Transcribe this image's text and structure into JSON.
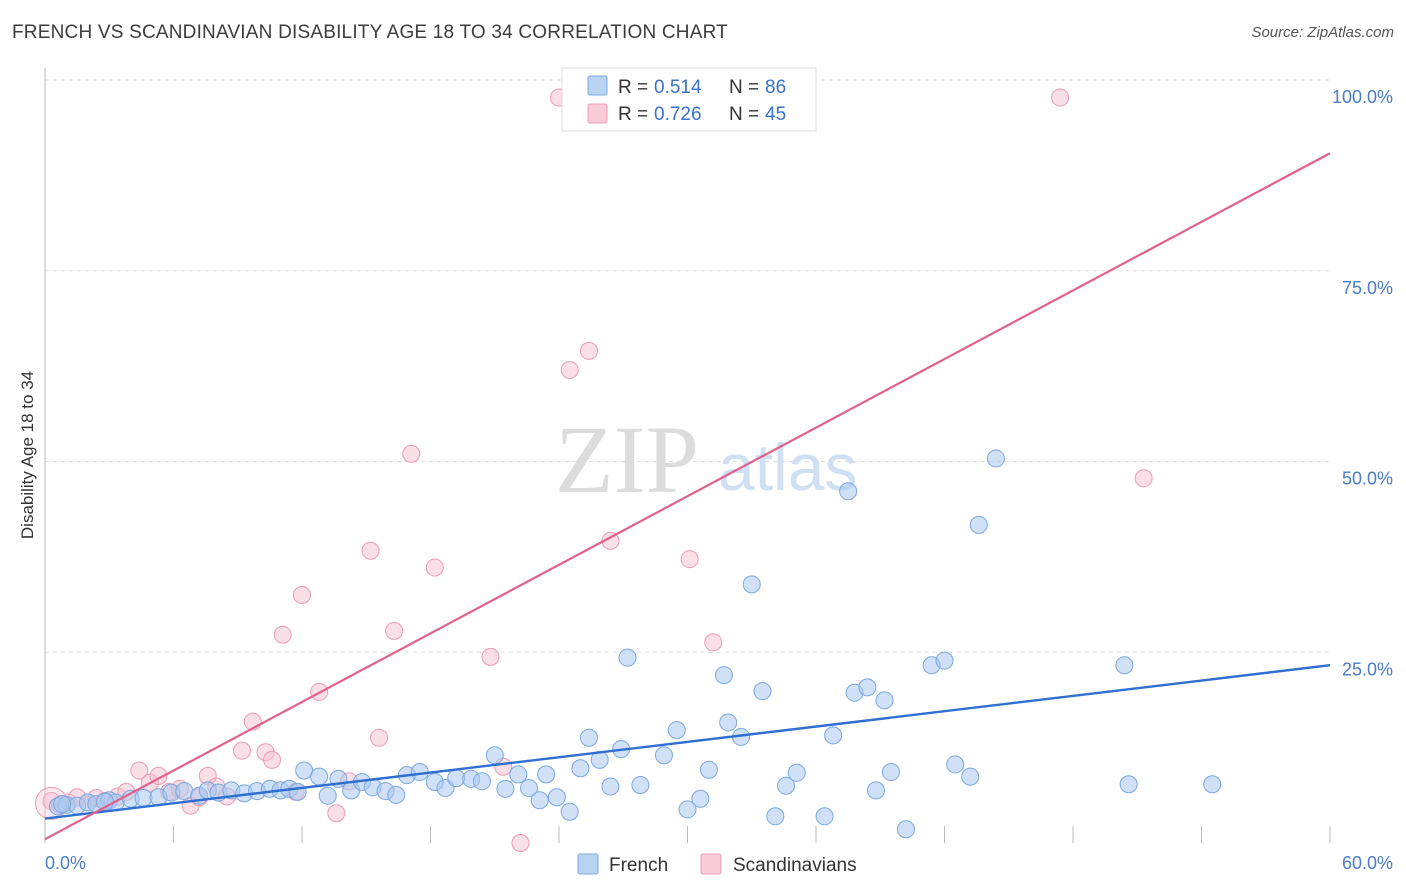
{
  "header": {
    "title": "FRENCH VS SCANDINAVIAN DISABILITY AGE 18 TO 34 CORRELATION CHART",
    "source": "Source: ZipAtlas.com"
  },
  "watermark": {
    "zip": "ZIP",
    "atlas": "atlas"
  },
  "colors": {
    "french_fill": "#a9c8f0",
    "french_stroke": "#7aa8e0",
    "french_line": "#2f6fd1",
    "scand_fill": "#f7bfd0",
    "scand_stroke": "#ee9bb5",
    "scand_line": "#e0628c",
    "grid": "#dddddd",
    "tick_text": "#4a7cc7"
  },
  "legend": {
    "rows": [
      {
        "r_label": "R =",
        "r_value": "0.514",
        "n_label": "N =",
        "n_value": "86"
      },
      {
        "r_label": "R =",
        "r_value": "0.726",
        "n_label": "N =",
        "n_value": "45"
      }
    ]
  },
  "bottom_legend": {
    "french": "French",
    "scandinavians": "Scandinavians"
  },
  "chart_data": {
    "type": "scatter",
    "title": "FRENCH VS SCANDINAVIAN DISABILITY AGE 18 TO 34 CORRELATION CHART",
    "xlabel": "",
    "ylabel": "Disability Age 18 to 34",
    "xlim": [
      0,
      60
    ],
    "ylim": [
      0,
      100
    ],
    "x_tick_labels": [
      "0.0%",
      "60.0%"
    ],
    "y_ticks": [
      25,
      50,
      75,
      100
    ],
    "y_tick_labels": [
      "25.0%",
      "50.0%",
      "75.0%",
      "100.0%"
    ],
    "series": [
      {
        "name": "French",
        "R": 0.514,
        "N": 86,
        "trend": {
          "x": [
            0,
            60
          ],
          "y": [
            3.2,
            23.3
          ]
        },
        "points": [
          [
            0.6,
            4.8
          ],
          [
            1.0,
            5.0
          ],
          [
            1.5,
            4.9
          ],
          [
            2.0,
            5.3
          ],
          [
            2.4,
            5.1
          ],
          [
            3.0,
            5.6
          ],
          [
            3.3,
            5.3
          ],
          [
            4.0,
            5.8
          ],
          [
            4.6,
            5.9
          ],
          [
            5.3,
            6.0
          ],
          [
            5.9,
            6.6
          ],
          [
            6.5,
            6.8
          ],
          [
            7.2,
            6.2
          ],
          [
            7.6,
            6.9
          ],
          [
            8.1,
            6.6
          ],
          [
            8.7,
            6.9
          ],
          [
            9.3,
            6.5
          ],
          [
            9.9,
            6.8
          ],
          [
            10.5,
            7.1
          ],
          [
            11.0,
            6.9
          ],
          [
            11.4,
            7.1
          ],
          [
            11.8,
            6.7
          ],
          [
            12.1,
            9.5
          ],
          [
            12.8,
            8.7
          ],
          [
            13.2,
            6.2
          ],
          [
            13.7,
            8.4
          ],
          [
            14.3,
            6.9
          ],
          [
            14.8,
            8.0
          ],
          [
            15.3,
            7.3
          ],
          [
            15.9,
            6.8
          ],
          [
            16.4,
            6.3
          ],
          [
            16.9,
            8.9
          ],
          [
            17.5,
            9.3
          ],
          [
            18.2,
            8.0
          ],
          [
            18.7,
            7.2
          ],
          [
            19.2,
            8.5
          ],
          [
            19.9,
            8.4
          ],
          [
            20.4,
            8.1
          ],
          [
            21.0,
            11.5
          ],
          [
            21.5,
            7.1
          ],
          [
            22.1,
            9.0
          ],
          [
            22.6,
            7.2
          ],
          [
            23.1,
            5.6
          ],
          [
            23.4,
            9.0
          ],
          [
            23.9,
            6.0
          ],
          [
            24.5,
            4.1
          ],
          [
            25.0,
            9.8
          ],
          [
            25.4,
            13.8
          ],
          [
            25.9,
            10.9
          ],
          [
            26.4,
            7.4
          ],
          [
            26.9,
            12.3
          ],
          [
            27.2,
            24.3
          ],
          [
            27.8,
            7.6
          ],
          [
            28.9,
            11.5
          ],
          [
            29.5,
            14.8
          ],
          [
            30.0,
            4.4
          ],
          [
            30.6,
            5.8
          ],
          [
            31.0,
            9.6
          ],
          [
            31.7,
            22.0
          ],
          [
            31.9,
            15.8
          ],
          [
            32.5,
            13.9
          ],
          [
            33.0,
            33.9
          ],
          [
            33.5,
            19.9
          ],
          [
            34.1,
            3.5
          ],
          [
            34.6,
            7.5
          ],
          [
            35.1,
            9.2
          ],
          [
            36.4,
            3.5
          ],
          [
            36.8,
            14.1
          ],
          [
            37.5,
            46.1
          ],
          [
            37.8,
            19.7
          ],
          [
            38.4,
            20.4
          ],
          [
            38.8,
            6.9
          ],
          [
            39.2,
            18.7
          ],
          [
            39.5,
            9.3
          ],
          [
            40.2,
            1.8
          ],
          [
            41.4,
            23.3
          ],
          [
            42.0,
            23.9
          ],
          [
            42.5,
            10.3
          ],
          [
            43.2,
            8.7
          ],
          [
            43.6,
            41.7
          ],
          [
            44.4,
            50.4
          ],
          [
            50.4,
            23.3
          ],
          [
            50.6,
            7.7
          ],
          [
            54.5,
            7.7
          ],
          [
            0.8,
            5.1
          ],
          [
            2.8,
            5.4
          ]
        ]
      },
      {
        "name": "Scandinavians",
        "R": 0.726,
        "N": 45,
        "trend": {
          "x": [
            0,
            60
          ],
          "y": [
            0.5,
            90.4
          ]
        },
        "points": [
          [
            0.3,
            5.5
          ],
          [
            0.7,
            5.0
          ],
          [
            1.1,
            5.3
          ],
          [
            1.5,
            6.0
          ],
          [
            2.0,
            5.3
          ],
          [
            2.4,
            5.9
          ],
          [
            2.8,
            5.5
          ],
          [
            3.4,
            6.1
          ],
          [
            3.8,
            6.7
          ],
          [
            4.4,
            9.5
          ],
          [
            4.9,
            7.9
          ],
          [
            5.3,
            8.8
          ],
          [
            5.8,
            6.7
          ],
          [
            6.3,
            7.1
          ],
          [
            6.8,
            4.9
          ],
          [
            7.2,
            6.0
          ],
          [
            7.6,
            8.8
          ],
          [
            8.0,
            7.4
          ],
          [
            8.5,
            6.1
          ],
          [
            9.2,
            12.1
          ],
          [
            9.7,
            15.9
          ],
          [
            10.3,
            11.9
          ],
          [
            10.6,
            10.9
          ],
          [
            11.1,
            27.3
          ],
          [
            11.7,
            6.7
          ],
          [
            12.0,
            32.5
          ],
          [
            12.8,
            19.8
          ],
          [
            13.6,
            3.9
          ],
          [
            14.2,
            8.1
          ],
          [
            15.2,
            38.3
          ],
          [
            15.6,
            13.8
          ],
          [
            16.3,
            27.8
          ],
          [
            17.1,
            51.0
          ],
          [
            18.2,
            36.1
          ],
          [
            20.8,
            24.4
          ],
          [
            21.4,
            10.0
          ],
          [
            22.2,
            0.0
          ],
          [
            24.0,
            97.7
          ],
          [
            24.5,
            62.0
          ],
          [
            25.4,
            64.5
          ],
          [
            26.4,
            39.6
          ],
          [
            30.1,
            37.2
          ],
          [
            31.2,
            26.3
          ],
          [
            47.4,
            97.7
          ],
          [
            51.3,
            47.8
          ]
        ]
      }
    ]
  }
}
